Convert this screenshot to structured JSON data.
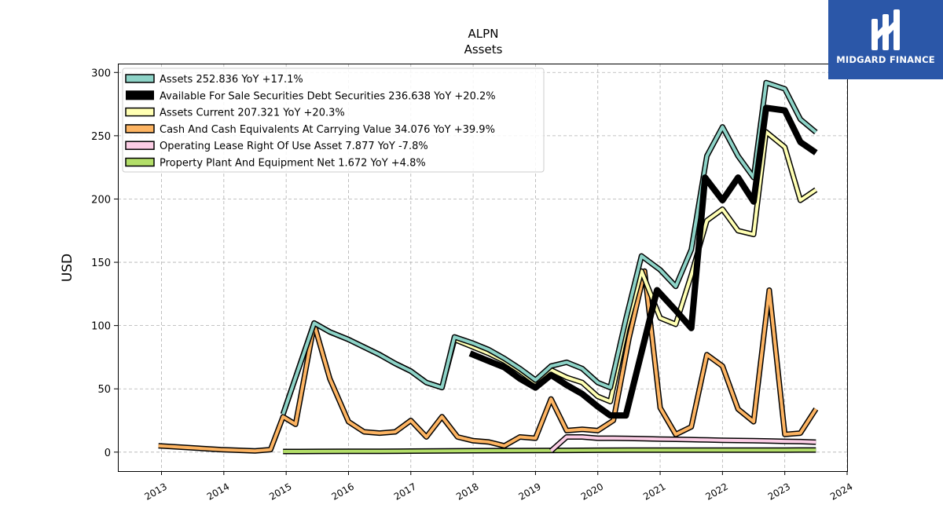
{
  "chart_data": {
    "type": "line",
    "title": "ALPN",
    "subtitle": "Assets",
    "ylabel": "USD",
    "xlabel": "",
    "ylim": [
      -15,
      307
    ],
    "xlim": [
      2012.3,
      2024.0
    ],
    "yticks": [
      0,
      50,
      100,
      150,
      200,
      250,
      300
    ],
    "xticks": [
      "2013",
      "2014",
      "2015",
      "2016",
      "2017",
      "2018",
      "2019",
      "2020",
      "2021",
      "2022",
      "2023",
      "2024"
    ],
    "grid": true,
    "legend_position": "top-left",
    "series": [
      {
        "name": "Assets  252.836 YoY +17.1%",
        "color": "#8dd3c7",
        "points": [
          [
            2014.95,
            30
          ],
          [
            2015.45,
            102
          ],
          [
            2015.7,
            95
          ],
          [
            2016.0,
            89
          ],
          [
            2016.5,
            77
          ],
          [
            2016.75,
            70
          ],
          [
            2017.0,
            64
          ],
          [
            2017.25,
            55
          ],
          [
            2017.5,
            51
          ],
          [
            2017.7,
            91
          ],
          [
            2018.0,
            86
          ],
          [
            2018.25,
            81
          ],
          [
            2018.5,
            74
          ],
          [
            2018.75,
            66
          ],
          [
            2019.0,
            57
          ],
          [
            2019.25,
            68
          ],
          [
            2019.5,
            71
          ],
          [
            2019.75,
            66
          ],
          [
            2020.0,
            55
          ],
          [
            2020.2,
            51
          ],
          [
            2020.45,
            105
          ],
          [
            2020.7,
            155
          ],
          [
            2021.0,
            144
          ],
          [
            2021.25,
            131
          ],
          [
            2021.5,
            160
          ],
          [
            2021.75,
            234
          ],
          [
            2022.0,
            257
          ],
          [
            2022.25,
            234
          ],
          [
            2022.5,
            217
          ],
          [
            2022.7,
            292
          ],
          [
            2023.0,
            287
          ],
          [
            2023.25,
            263
          ],
          [
            2023.5,
            252.8
          ]
        ]
      },
      {
        "name": "Available For Sale Securities Debt Securities  236.638 YoY +20.2%",
        "color": "#000000",
        "points": [
          [
            2017.95,
            78
          ],
          [
            2018.25,
            72
          ],
          [
            2018.5,
            67
          ],
          [
            2018.75,
            58
          ],
          [
            2019.0,
            51
          ],
          [
            2019.25,
            61
          ],
          [
            2019.5,
            53
          ],
          [
            2019.75,
            46
          ],
          [
            2020.0,
            36
          ],
          [
            2020.2,
            29
          ],
          [
            2020.45,
            29
          ],
          [
            2020.95,
            128
          ],
          [
            2021.25,
            112
          ],
          [
            2021.5,
            98
          ],
          [
            2021.72,
            217
          ],
          [
            2022.0,
            199
          ],
          [
            2022.25,
            217
          ],
          [
            2022.5,
            198
          ],
          [
            2022.7,
            272
          ],
          [
            2023.0,
            270
          ],
          [
            2023.25,
            245
          ],
          [
            2023.5,
            236.6
          ]
        ]
      },
      {
        "name": "Assets Current  207.321 YoY +20.3%",
        "color": "#ffffb3",
        "points": [
          [
            2014.95,
            30
          ],
          [
            2015.45,
            102
          ],
          [
            2015.7,
            95
          ],
          [
            2016.0,
            89
          ],
          [
            2016.5,
            77
          ],
          [
            2016.75,
            70
          ],
          [
            2017.0,
            64
          ],
          [
            2017.25,
            55
          ],
          [
            2017.5,
            51
          ],
          [
            2017.7,
            89
          ],
          [
            2018.0,
            83
          ],
          [
            2018.25,
            78
          ],
          [
            2018.5,
            72
          ],
          [
            2018.75,
            64
          ],
          [
            2019.0,
            55
          ],
          [
            2019.25,
            65
          ],
          [
            2019.5,
            59
          ],
          [
            2019.75,
            55
          ],
          [
            2020.0,
            44
          ],
          [
            2020.2,
            40
          ],
          [
            2020.45,
            97
          ],
          [
            2020.7,
            143
          ],
          [
            2021.0,
            106
          ],
          [
            2021.25,
            101
          ],
          [
            2021.5,
            140
          ],
          [
            2021.75,
            183
          ],
          [
            2022.0,
            192
          ],
          [
            2022.25,
            175
          ],
          [
            2022.5,
            172
          ],
          [
            2022.7,
            253
          ],
          [
            2023.0,
            241
          ],
          [
            2023.25,
            199
          ],
          [
            2023.5,
            207.3
          ]
        ]
      },
      {
        "name": "Cash And Cash Equivalents At Carrying Value  34.076 YoY +39.9%",
        "color": "#fdb462",
        "points": [
          [
            2012.95,
            5
          ],
          [
            2013.95,
            2
          ],
          [
            2014.5,
            1
          ],
          [
            2014.75,
            2
          ],
          [
            2014.95,
            28
          ],
          [
            2015.15,
            22
          ],
          [
            2015.45,
            101
          ],
          [
            2015.7,
            58
          ],
          [
            2016.0,
            24
          ],
          [
            2016.25,
            16
          ],
          [
            2016.5,
            15
          ],
          [
            2016.75,
            16
          ],
          [
            2017.0,
            25
          ],
          [
            2017.25,
            12
          ],
          [
            2017.5,
            28
          ],
          [
            2017.75,
            12
          ],
          [
            2018.0,
            9
          ],
          [
            2018.25,
            8
          ],
          [
            2018.5,
            5
          ],
          [
            2018.75,
            12
          ],
          [
            2019.0,
            11
          ],
          [
            2019.25,
            42
          ],
          [
            2019.5,
            17
          ],
          [
            2019.75,
            18
          ],
          [
            2020.0,
            17
          ],
          [
            2020.25,
            25
          ],
          [
            2020.5,
            90
          ],
          [
            2020.75,
            143
          ],
          [
            2021.0,
            35
          ],
          [
            2021.25,
            14
          ],
          [
            2021.5,
            20
          ],
          [
            2021.75,
            77
          ],
          [
            2022.0,
            68
          ],
          [
            2022.25,
            34
          ],
          [
            2022.5,
            24
          ],
          [
            2022.75,
            128
          ],
          [
            2023.0,
            14
          ],
          [
            2023.25,
            15
          ],
          [
            2023.5,
            34.1
          ]
        ]
      },
      {
        "name": "Operating Lease Right Of Use Asset  7.877 YoY -7.8%",
        "color": "#fccde5",
        "points": [
          [
            2019.25,
            1
          ],
          [
            2019.5,
            12
          ],
          [
            2019.75,
            12
          ],
          [
            2020.0,
            11
          ],
          [
            2020.25,
            11
          ],
          [
            2020.5,
            10.8
          ],
          [
            2020.75,
            10.6
          ],
          [
            2021.0,
            10.3
          ],
          [
            2021.25,
            10.1
          ],
          [
            2021.5,
            9.9
          ],
          [
            2021.75,
            9.6
          ],
          [
            2022.0,
            9.4
          ],
          [
            2022.25,
            9.2
          ],
          [
            2022.5,
            9.0
          ],
          [
            2022.75,
            8.8
          ],
          [
            2023.0,
            8.5
          ],
          [
            2023.25,
            8.3
          ],
          [
            2023.5,
            7.9
          ]
        ]
      },
      {
        "name": "Property Plant And Equipment Net  1.672 YoY +4.8%",
        "color": "#b3de69",
        "points": [
          [
            2014.95,
            0.5
          ],
          [
            2015.5,
            0.6
          ],
          [
            2016.0,
            0.7
          ],
          [
            2016.5,
            0.7
          ],
          [
            2017.0,
            0.8
          ],
          [
            2017.5,
            1.0
          ],
          [
            2018.0,
            1.1
          ],
          [
            2018.5,
            1.2
          ],
          [
            2019.0,
            1.3
          ],
          [
            2019.5,
            1.4
          ],
          [
            2020.0,
            1.5
          ],
          [
            2020.5,
            1.6
          ],
          [
            2021.0,
            1.6
          ],
          [
            2021.5,
            1.6
          ],
          [
            2022.0,
            1.6
          ],
          [
            2022.5,
            1.6
          ],
          [
            2023.0,
            1.6
          ],
          [
            2023.5,
            1.7
          ]
        ]
      }
    ]
  },
  "brand": {
    "name": "MIDGARD FINANCE",
    "bg_color": "#2b57a8"
  }
}
